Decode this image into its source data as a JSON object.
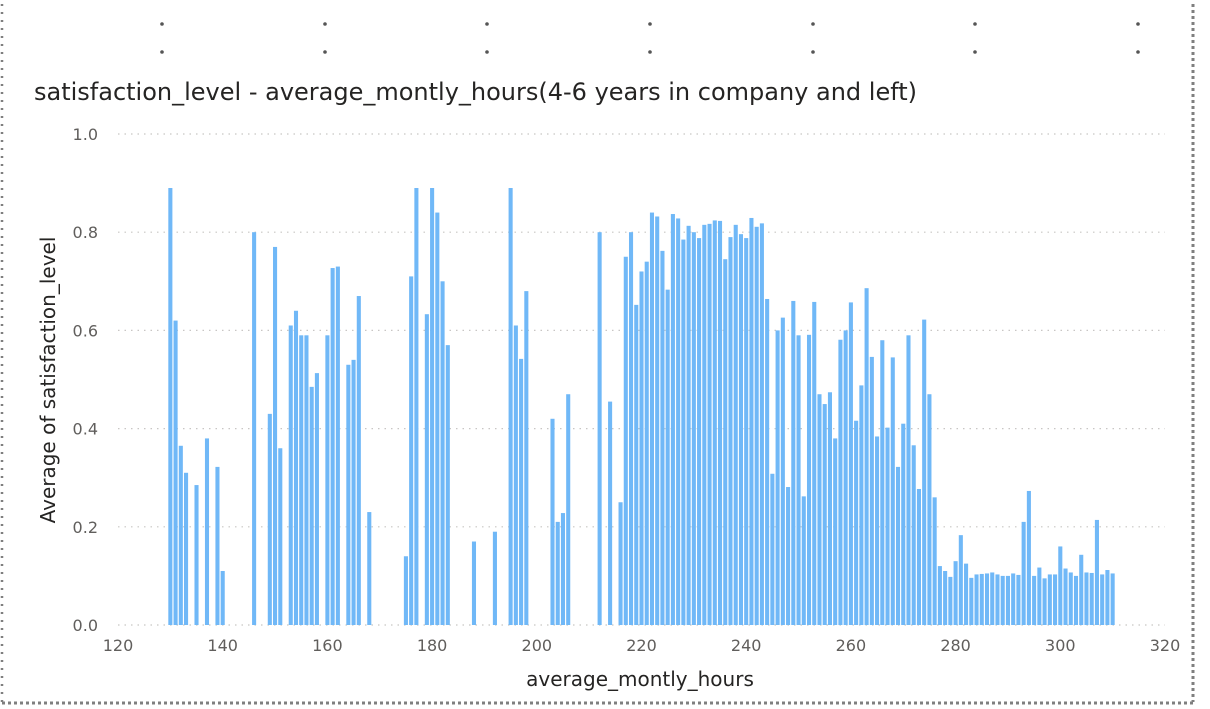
{
  "colors": {
    "bar": "#70b8f7",
    "grid": "#c8c6c4",
    "frame": "#7f7f7f",
    "text": "#252423",
    "tick": "#605e5c"
  },
  "chart_data": {
    "type": "bar",
    "title": "satisfaction_level - average_montly_hours(4-6 years in company and left)",
    "xlabel": "average_montly_hours",
    "ylabel": "Average of satisfaction_level",
    "xlim": [
      120,
      320
    ],
    "ylim": [
      0,
      1
    ],
    "x_ticks": [
      120,
      140,
      160,
      180,
      200,
      220,
      240,
      260,
      280,
      300,
      320
    ],
    "y_ticks": [
      "0.0",
      "0.2",
      "0.4",
      "0.6",
      "0.8",
      "1.0"
    ],
    "grid": true,
    "legend": "none",
    "x": [
      130,
      131,
      132,
      133,
      135,
      137,
      139,
      140,
      146,
      149,
      150,
      151,
      153,
      154,
      155,
      156,
      157,
      158,
      160,
      161,
      162,
      164,
      165,
      166,
      168,
      175,
      176,
      177,
      179,
      180,
      181,
      182,
      183,
      188,
      192,
      195,
      196,
      197,
      198,
      203,
      204,
      205,
      206,
      212,
      214,
      216,
      217,
      218,
      219,
      220,
      221,
      222,
      223,
      224,
      225,
      226,
      227,
      228,
      229,
      230,
      231,
      232,
      233,
      234,
      235,
      236,
      237,
      238,
      239,
      240,
      241,
      242,
      243,
      244,
      245,
      246,
      247,
      248,
      249,
      250,
      251,
      252,
      253,
      254,
      255,
      256,
      257,
      258,
      259,
      260,
      261,
      262,
      263,
      264,
      265,
      266,
      267,
      268,
      269,
      270,
      271,
      272,
      273,
      274,
      275,
      276,
      277,
      278,
      279,
      280,
      281,
      282,
      283,
      284,
      285,
      286,
      287,
      288,
      289,
      290,
      291,
      292,
      293,
      294,
      295,
      296,
      297,
      298,
      299,
      300,
      301,
      302,
      303,
      304,
      305,
      306,
      307,
      308,
      309,
      310
    ],
    "values": [
      0.89,
      0.62,
      0.365,
      0.31,
      0.285,
      0.38,
      0.322,
      0.11,
      0.8,
      0.43,
      0.77,
      0.36,
      0.61,
      0.64,
      0.59,
      0.59,
      0.485,
      0.513,
      0.59,
      0.727,
      0.73,
      0.53,
      0.54,
      0.67,
      0.23,
      0.14,
      0.71,
      0.89,
      0.633,
      0.89,
      0.84,
      0.7,
      0.57,
      0.17,
      0.19,
      0.89,
      0.61,
      0.542,
      0.68,
      0.42,
      0.21,
      0.228,
      0.47,
      0.8,
      0.455,
      0.25,
      0.75,
      0.8,
      0.652,
      0.72,
      0.74,
      0.84,
      0.832,
      0.762,
      0.683,
      0.837,
      0.828,
      0.785,
      0.813,
      0.8,
      0.788,
      0.815,
      0.817,
      0.824,
      0.823,
      0.745,
      0.79,
      0.815,
      0.796,
      0.788,
      0.829,
      0.811,
      0.818,
      0.664,
      0.308,
      0.6,
      0.626,
      0.281,
      0.66,
      0.59,
      0.262,
      0.591,
      0.658,
      0.47,
      0.45,
      0.474,
      0.38,
      0.581,
      0.6,
      0.657,
      0.416,
      0.488,
      0.686,
      0.546,
      0.384,
      0.58,
      0.402,
      0.545,
      0.322,
      0.41,
      0.59,
      0.366,
      0.277,
      0.622,
      0.47,
      0.26,
      0.12,
      0.11,
      0.098,
      0.13,
      0.183,
      0.125,
      0.096,
      0.103,
      0.104,
      0.105,
      0.107,
      0.103,
      0.1,
      0.1,
      0.105,
      0.102,
      0.21,
      0.273,
      0.1,
      0.117,
      0.095,
      0.103,
      0.103,
      0.16,
      0.115,
      0.107,
      0.1,
      0.143,
      0.107,
      0.106,
      0.214,
      0.103,
      0.112,
      0.105
    ]
  }
}
